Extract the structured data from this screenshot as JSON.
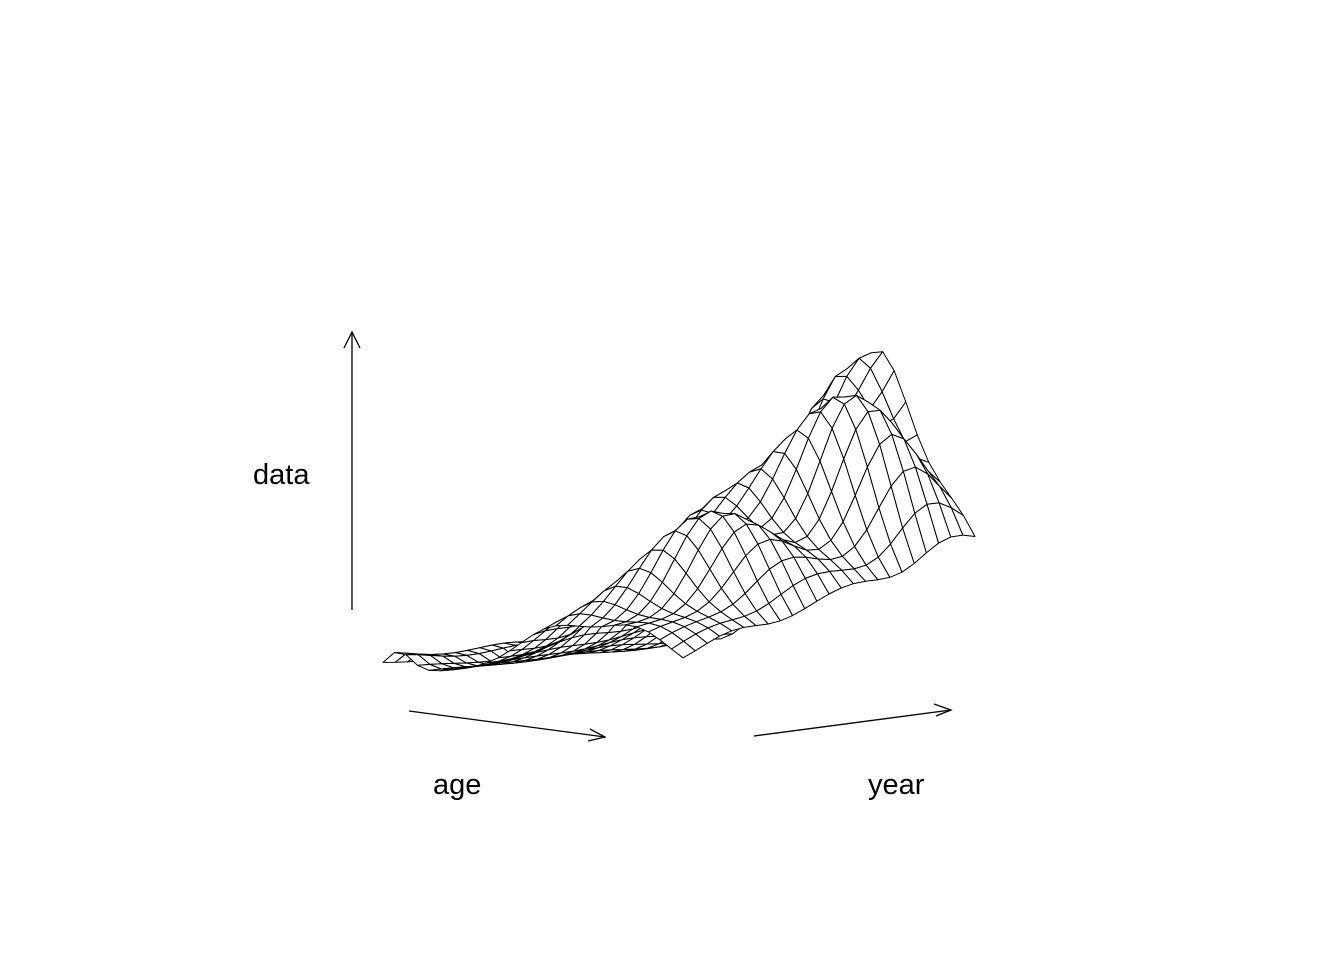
{
  "chart_data": {
    "type": "surface",
    "xlabel": "age",
    "ylabel": "year",
    "zlabel": "data",
    "style": "wireframe perspective plot, white facets with black edges",
    "colors": {
      "facet_fill": "#ffffff",
      "edge": "#000000",
      "background": "#ffffff"
    }
  }
}
